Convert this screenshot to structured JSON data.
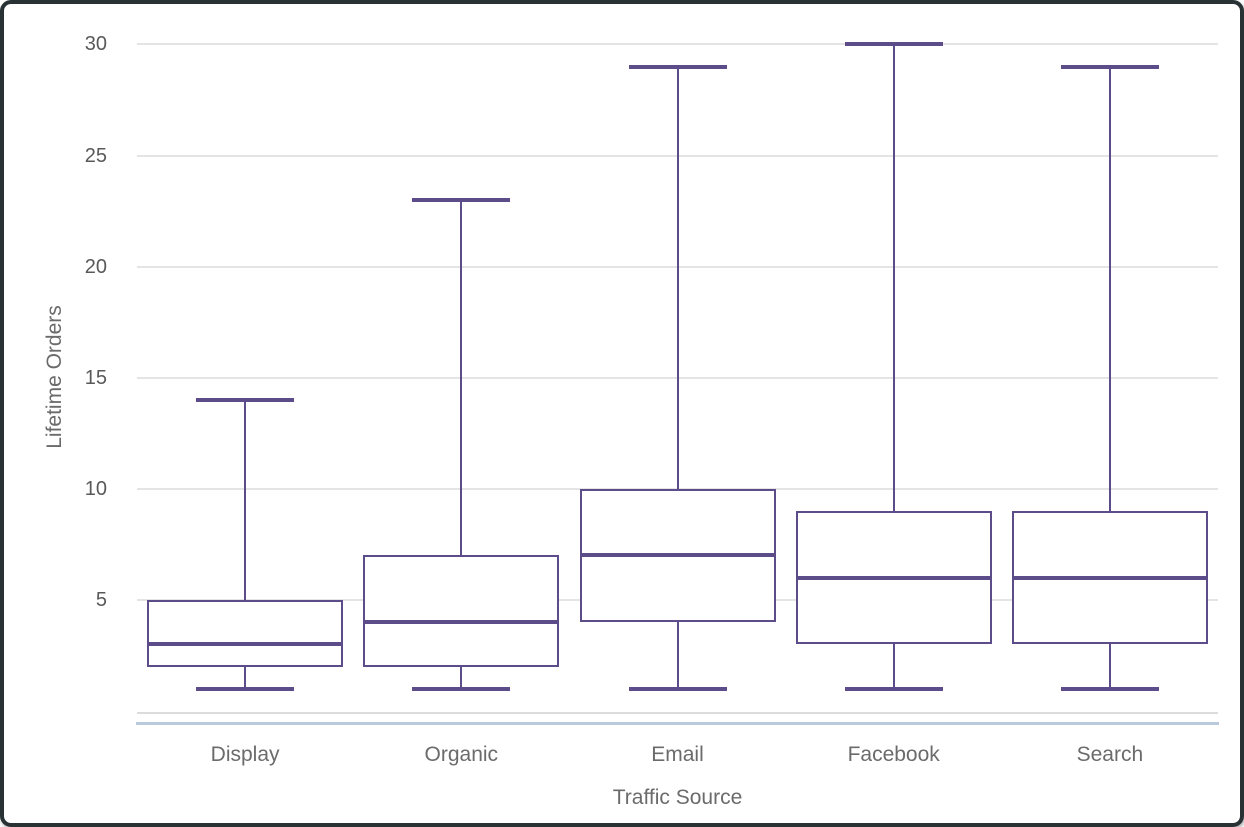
{
  "chart_data": {
    "type": "box",
    "title": "",
    "xlabel": "Traffic Source",
    "ylabel": "Lifetime Orders",
    "categories": [
      "Display",
      "Organic",
      "Email",
      "Facebook",
      "Search"
    ],
    "series": [
      {
        "name": "Display",
        "min": 1,
        "q1": 2,
        "median": 3,
        "q3": 5,
        "max": 14
      },
      {
        "name": "Organic",
        "min": 1,
        "q1": 2,
        "median": 4,
        "q3": 7,
        "max": 23
      },
      {
        "name": "Email",
        "min": 1,
        "q1": 4,
        "median": 7,
        "q3": 10,
        "max": 29
      },
      {
        "name": "Facebook",
        "min": 1,
        "q1": 3,
        "median": 6,
        "q3": 9,
        "max": 30
      },
      {
        "name": "Search",
        "min": 1,
        "q1": 3,
        "median": 6,
        "q3": 9,
        "max": 29
      }
    ],
    "yticks": [
      5,
      10,
      15,
      20,
      25,
      30
    ],
    "ylim": [
      0,
      30.5
    ],
    "grid": "horizontal",
    "legend": false,
    "outliers": [],
    "colors": {
      "box_stroke": "#5d4c8a",
      "box_fill": "#ffffff",
      "gridline": "#e4e4e4",
      "axis_line": "#dcdcdc",
      "accent_line": "#b9cadd",
      "tick_label": "#595959",
      "axis_title": "#6b6b6b",
      "frame_border": "#283134",
      "background": "#ffffff"
    }
  }
}
